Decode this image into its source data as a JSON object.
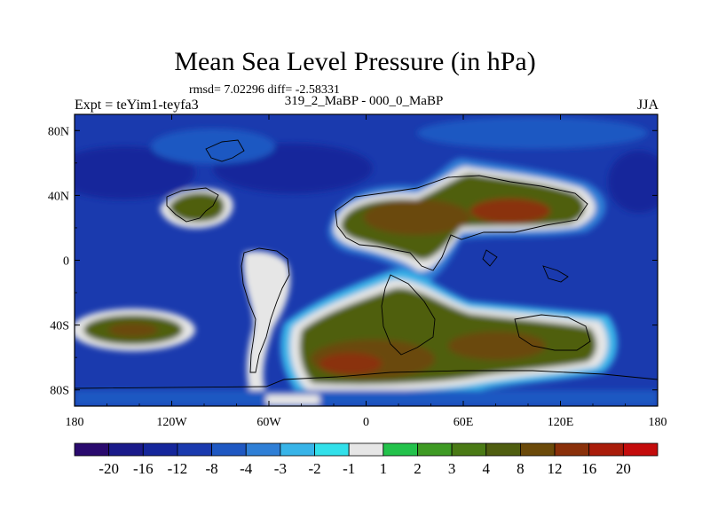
{
  "title": "Mean Sea Level Pressure (in hPa)",
  "stats": "rmsd= 7.02296 diff= -2.58331",
  "subtitle": "319_2_MaBP - 000_0_MaBP",
  "expt": "Expt = teYim1-teyfa3",
  "season": "JJA",
  "axes": {
    "x_ticks": [
      {
        "lon": -180,
        "label": "180"
      },
      {
        "lon": -120,
        "label": "120W"
      },
      {
        "lon": -60,
        "label": "60W"
      },
      {
        "lon": 0,
        "label": "0"
      },
      {
        "lon": 60,
        "label": "60E"
      },
      {
        "lon": 120,
        "label": "120E"
      },
      {
        "lon": 180,
        "label": "180"
      }
    ],
    "y_ticks": [
      {
        "lat": 80,
        "label": "80N"
      },
      {
        "lat": 40,
        "label": "40N"
      },
      {
        "lat": 0,
        "label": "0"
      },
      {
        "lat": -40,
        "label": "40S"
      },
      {
        "lat": -80,
        "label": "80S"
      }
    ]
  },
  "colorbar": {
    "colors": [
      "#2a0a6e",
      "#1a1a8a",
      "#15269b",
      "#1a3aae",
      "#1f58c2",
      "#2f7fd6",
      "#38b4e8",
      "#32e0ea",
      "#e6e6e6",
      "#23c24b",
      "#3e9a24",
      "#4a7a15",
      "#4f5e10",
      "#6b4a0a",
      "#8a300a",
      "#a91c0a",
      "#c40c0c"
    ],
    "labels": [
      "-20",
      "-16",
      "-12",
      "-8",
      "-4",
      "-3",
      "-2",
      "-1",
      "1",
      "2",
      "3",
      "4",
      "8",
      "12",
      "16",
      "20"
    ]
  }
}
